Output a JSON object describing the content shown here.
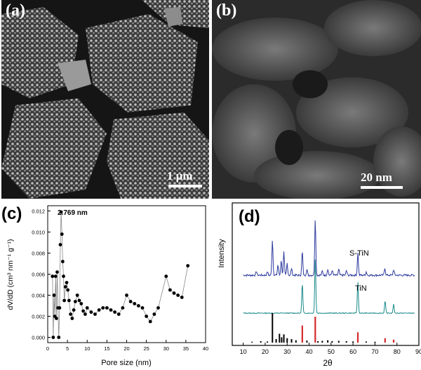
{
  "figure": {
    "panel_a": {
      "label": "(a)",
      "scale_bar": "1 μm"
    },
    "panel_b": {
      "label": "(b)",
      "scale_bar": "20 nm"
    },
    "panel_c": {
      "label": "(c)"
    },
    "panel_d": {
      "label": "(d)"
    }
  },
  "chart_data": [
    {
      "type": "line",
      "panel": "(c)",
      "xlabel": "Pore size (nm)",
      "ylabel": "dV/dD (cm³ nm⁻¹ g⁻¹)",
      "annotation": "2.769 nm",
      "xlim": [
        0,
        40
      ],
      "ylim": [
        -0.0005,
        0.0125
      ],
      "xticks": [
        "0",
        "5",
        "10",
        "15",
        "20",
        "25",
        "30",
        "35",
        "40"
      ],
      "yticks": [
        "0.000",
        "0.002",
        "0.004",
        "0.006",
        "0.008",
        "0.010",
        "0.012"
      ],
      "series": [
        {
          "x": [
            1.2,
            1.4,
            1.6,
            1.8,
            2.0,
            2.2,
            2.4,
            2.6,
            2.8,
            3.0,
            3.2,
            3.4,
            3.6,
            3.8,
            4.0,
            4.2,
            4.5,
            4.8,
            5.1,
            5.4,
            5.8,
            6.2,
            6.6,
            7.0,
            7.5,
            8.0,
            8.5,
            9.0,
            9.5,
            10.0,
            11.0,
            12.0,
            13.0,
            14.0,
            15.0,
            16.0,
            17.0,
            18.0,
            19.0,
            20.0,
            21.0,
            22.0,
            23.0,
            24.0,
            25.0,
            26.0,
            27.0,
            28.0,
            30.0,
            31.0,
            32.0,
            33.0,
            34.0,
            35.5
          ],
          "values": [
            0.0058,
            0.0,
            0.004,
            0.002,
            0.0058,
            0.0018,
            0.0062,
            0.0028,
            0.0,
            0.0028,
            0.0088,
            0.0119,
            0.0098,
            0.0072,
            0.0058,
            0.0035,
            0.0048,
            0.0052,
            0.0045,
            0.0035,
            0.0022,
            0.0018,
            0.0026,
            0.0034,
            0.004,
            0.0035,
            0.0032,
            0.0025,
            0.0022,
            0.0028,
            0.0024,
            0.0022,
            0.0026,
            0.0028,
            0.0028,
            0.0026,
            0.0024,
            0.0022,
            0.0028,
            0.004,
            0.0034,
            0.0032,
            0.003,
            0.0028,
            0.002,
            0.0015,
            0.0022,
            0.0028,
            0.0058,
            0.0045,
            0.0042,
            0.004,
            0.0038,
            0.0068
          ]
        }
      ]
    },
    {
      "type": "line",
      "panel": "(d)",
      "xlabel": "2θ",
      "ylabel": "Intensity",
      "xlim": [
        5,
        90
      ],
      "xticks": [
        "10",
        "20",
        "30",
        "40",
        "50",
        "60",
        "70",
        "80",
        "90"
      ],
      "series": [
        {
          "name": "S-TiN",
          "color": "#2e3b9e",
          "peaks": [
            [
              16,
              0.07
            ],
            [
              21,
              0.06
            ],
            [
              23.3,
              0.62
            ],
            [
              25.8,
              0.18
            ],
            [
              27.3,
              0.26
            ],
            [
              28.5,
              0.4
            ],
            [
              30,
              0.21
            ],
            [
              32,
              0.12
            ],
            [
              36.9,
              0.42
            ],
            [
              39,
              0.1
            ],
            [
              42.8,
              0.99
            ],
            [
              46,
              0.07
            ],
            [
              48.5,
              0.11
            ],
            [
              50.5,
              0.09
            ],
            [
              53.5,
              0.1
            ],
            [
              57,
              0.08
            ],
            [
              62.2,
              0.39
            ],
            [
              66,
              0.06
            ],
            [
              74.5,
              0.13
            ],
            [
              78.5,
              0.1
            ]
          ]
        },
        {
          "name": "TiN",
          "color": "#1a8a8a",
          "peaks": [
            [
              36.9,
              0.55
            ],
            [
              42.8,
              1.0
            ],
            [
              62.2,
              0.58
            ],
            [
              74.6,
              0.22
            ],
            [
              78.5,
              0.16
            ]
          ]
        },
        {
          "name": "reference-black",
          "color": "#000000",
          "sticks": [
            [
              14,
              0.03
            ],
            [
              18,
              0.05
            ],
            [
              21,
              0.04
            ],
            [
              23.3,
              1.0
            ],
            [
              25,
              0.12
            ],
            [
              26.5,
              0.3
            ],
            [
              27.5,
              0.18
            ],
            [
              28.5,
              0.28
            ],
            [
              30,
              0.15
            ],
            [
              32,
              0.12
            ],
            [
              34,
              0.08
            ],
            [
              39,
              0.07
            ],
            [
              44,
              0.05
            ],
            [
              46,
              0.06
            ],
            [
              48.5,
              0.08
            ],
            [
              50.5,
              0.05
            ],
            [
              53.5,
              0.06
            ],
            [
              57,
              0.05
            ],
            [
              60,
              0.04
            ],
            [
              66,
              0.04
            ],
            [
              70,
              0.03
            ]
          ]
        },
        {
          "name": "reference-red",
          "color": "#d42a2a",
          "sticks": [
            [
              36.9,
              0.58
            ],
            [
              42.8,
              0.88
            ],
            [
              62.2,
              0.35
            ],
            [
              74.6,
              0.15
            ],
            [
              78.5,
              0.1
            ]
          ]
        }
      ]
    }
  ]
}
